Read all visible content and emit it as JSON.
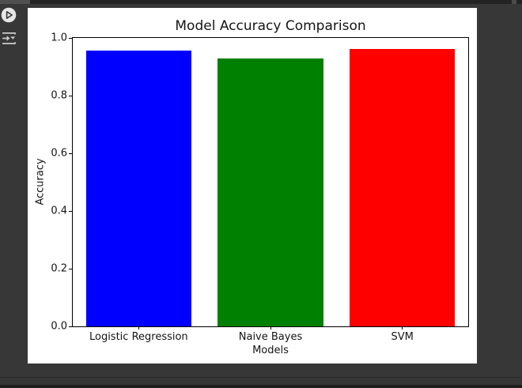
{
  "colors": {
    "background": "#373737",
    "top_scrollbar_track": "#232323",
    "top_scrollbar_thumb": "#4f4f4f",
    "figure_background": "#ffffff",
    "axis_color": "#000000",
    "bottom_bar": "#1e1e1e",
    "icon_color": "#cccccc"
  },
  "toolbar": {
    "icons": [
      {
        "name": "play-circle-icon"
      },
      {
        "name": "execute-cells-below-icon"
      }
    ]
  },
  "chart_data": {
    "type": "bar",
    "title": "Model Accuracy Comparison",
    "xlabel": "Models",
    "ylabel": "Accuracy",
    "categories": [
      "Logistic Regression",
      "Naive Bayes",
      "SVM"
    ],
    "values": [
      0.956,
      0.93,
      0.961
    ],
    "bar_colors": [
      "#0000ff",
      "#008000",
      "#ff0000"
    ],
    "ylim": [
      0.0,
      1.0
    ],
    "yticks": [
      0.0,
      0.2,
      0.4,
      0.6,
      0.8,
      1.0
    ],
    "bar_width_fraction": 0.8,
    "grid": false,
    "legend": null
  }
}
